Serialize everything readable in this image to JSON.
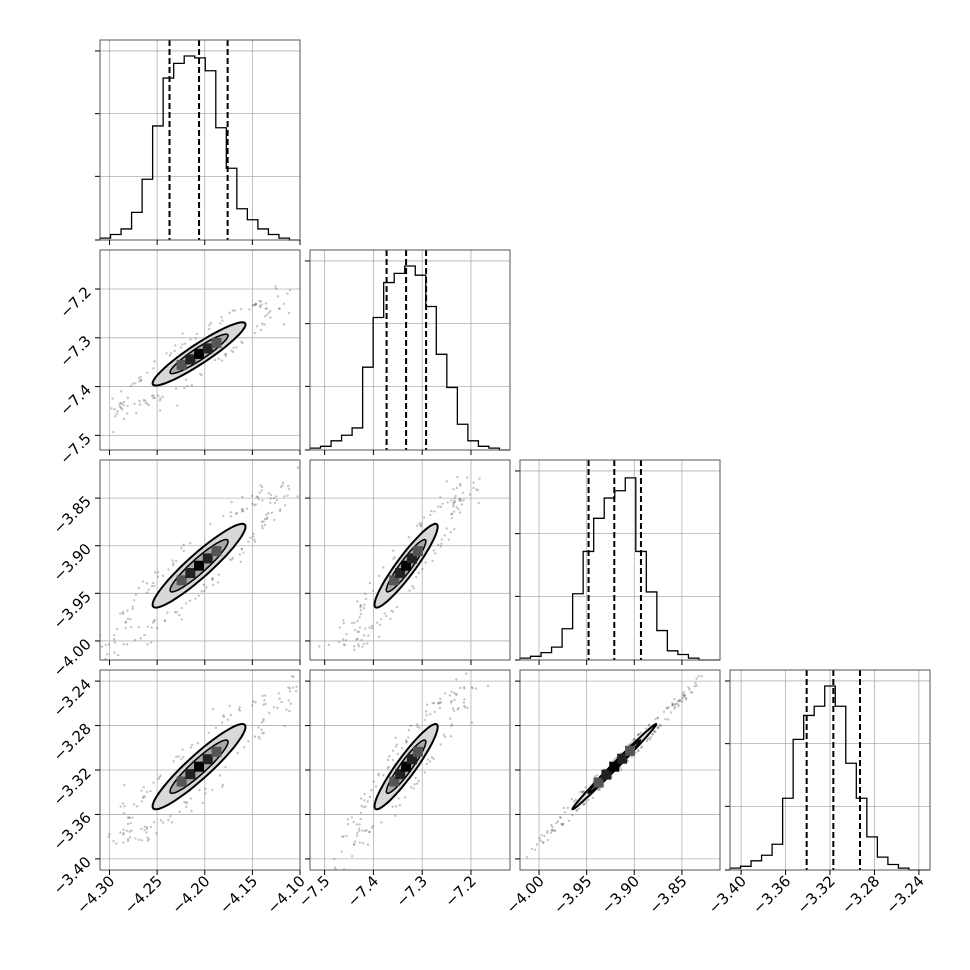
{
  "chart_data": {
    "type": "corner",
    "parameters": [
      {
        "range": [
          -4.31,
          -4.1
        ],
        "ticks": [
          -4.3,
          -4.25,
          -4.2,
          -4.15,
          -4.1
        ],
        "tick_labels": [
          "−4.30",
          "−4.25",
          "−4.20",
          "−4.15",
          "−4.10"
        ],
        "quantiles": [
          -4.237,
          -4.206,
          -4.176
        ],
        "histogram": [
          0.01,
          0.03,
          0.06,
          0.15,
          0.33,
          0.62,
          0.88,
          0.96,
          1.0,
          0.99,
          0.92,
          0.61,
          0.39,
          0.17,
          0.11,
          0.06,
          0.03,
          0.01,
          0.0
        ]
      },
      {
        "range": [
          -7.53,
          -7.12
        ],
        "ticks": [
          -7.5,
          -7.4,
          -7.3,
          -7.2
        ],
        "tick_labels": [
          "−7.5",
          "−7.4",
          "−7.3",
          "−7.2"
        ],
        "quantiles": [
          -7.373,
          -7.333,
          -7.292
        ],
        "histogram": [
          0.01,
          0.02,
          0.05,
          0.08,
          0.12,
          0.45,
          0.72,
          0.91,
          0.96,
          1.0,
          0.95,
          0.78,
          0.52,
          0.34,
          0.14,
          0.05,
          0.02,
          0.01,
          0.0
        ]
      },
      {
        "range": [
          -4.02,
          -3.81
        ],
        "ticks": [
          -4.0,
          -3.95,
          -3.9,
          -3.85
        ],
        "tick_labels": [
          "−4.00",
          "−3.95",
          "−3.90",
          "−3.85"
        ],
        "quantiles": [
          -3.948,
          -3.921,
          -3.893
        ],
        "histogram": [
          0.01,
          0.02,
          0.04,
          0.07,
          0.17,
          0.36,
          0.59,
          0.77,
          0.88,
          0.92,
          0.99,
          0.59,
          0.37,
          0.16,
          0.05,
          0.03,
          0.01,
          0.0,
          0.0
        ]
      },
      {
        "range": [
          -3.41,
          -3.23
        ],
        "ticks": [
          -3.4,
          -3.36,
          -3.32,
          -3.28,
          -3.24
        ],
        "tick_labels": [
          "−3.40",
          "−3.36",
          "−3.32",
          "−3.28",
          "−3.24"
        ],
        "quantiles": [
          -3.341,
          -3.317,
          -3.293
        ],
        "histogram": [
          0.01,
          0.02,
          0.05,
          0.08,
          0.14,
          0.39,
          0.71,
          0.84,
          0.89,
          1.0,
          0.89,
          0.58,
          0.39,
          0.18,
          0.07,
          0.03,
          0.01,
          0.0,
          0.0
        ]
      }
    ],
    "correlation": 0.93,
    "grid": true,
    "axis_labels": []
  }
}
